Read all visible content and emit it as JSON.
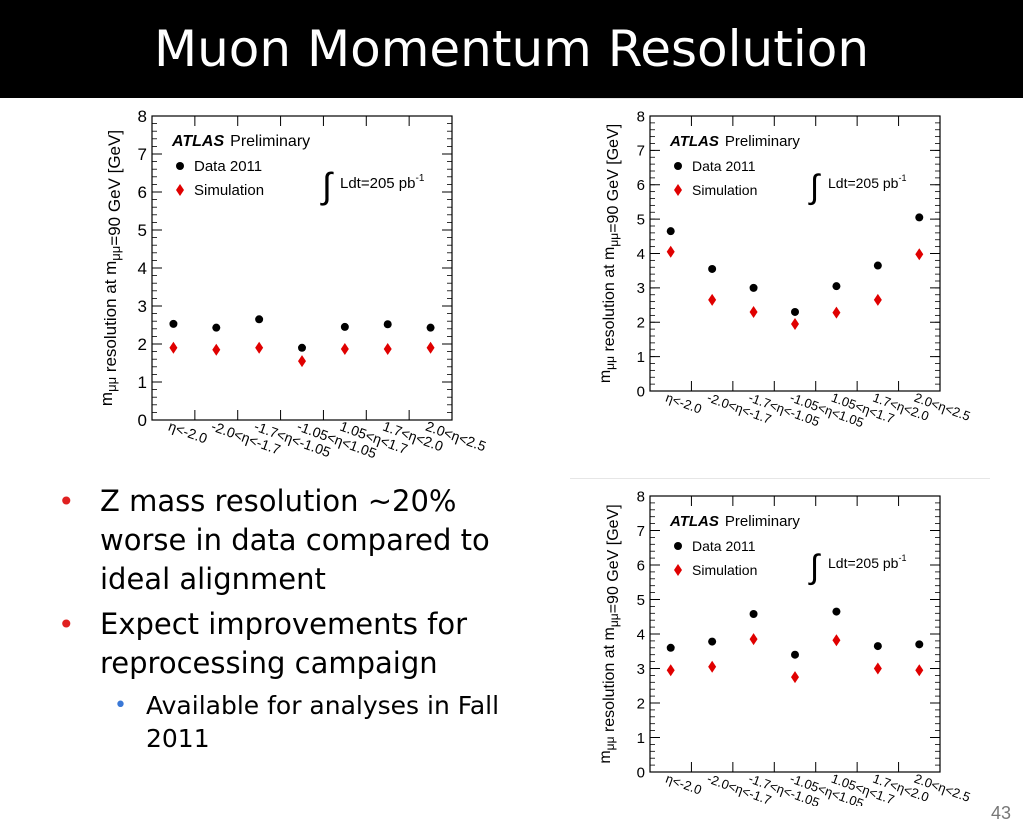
{
  "slide": {
    "title": "Muon Momentum Resolution",
    "page_number": "43",
    "bullets": [
      {
        "text": "Z mass resolution ~20% worse in data compared to ideal alignment"
      },
      {
        "text": "Expect improvements for reprocessing campaign",
        "sub": [
          {
            "text": "Available for analyses in Fall 2011"
          }
        ]
      }
    ]
  },
  "colors": {
    "data": "#000000",
    "simulation": "#e00000",
    "bullet": "#e02020",
    "sub_bullet": "#3a78d6"
  },
  "chart_data": [
    {
      "type": "scatter",
      "ylabel_main": "m",
      "ylabel_sub": "μμ",
      "ylabel_mid": " resolution at m",
      "ylabel_tail": "=90 GeV [GeV]",
      "ylim": [
        0,
        8
      ],
      "yticks": [
        "0",
        "1",
        "2",
        "3",
        "4",
        "5",
        "6",
        "7",
        "8"
      ],
      "categories": [
        "η<-2.0",
        "-2.0<η<-1.7",
        "-1.7<η<-1.05",
        "-1.05<η<1.05",
        "1.05<η<1.7",
        "1.7<η<2.0",
        "2.0<η<2.5"
      ],
      "label_atlas": "ATLAS",
      "label_prelim": "Preliminary",
      "integral_symbol": "∫",
      "lumi_text": "Ldt=205 pb",
      "lumi_exp": "-1",
      "legend": "top-left",
      "series": [
        {
          "name": "Data 2011",
          "marker": "circle",
          "values": [
            2.53,
            2.43,
            2.65,
            1.9,
            2.45,
            2.52,
            2.43
          ]
        },
        {
          "name": "Simulation",
          "marker": "diamond",
          "values": [
            1.9,
            1.85,
            1.9,
            1.55,
            1.87,
            1.87,
            1.9
          ]
        }
      ]
    },
    {
      "type": "scatter",
      "ylabel_main": "m",
      "ylabel_sub": "μμ",
      "ylabel_mid": " resolution at m",
      "ylabel_tail": "=90 GeV [GeV]",
      "ylim": [
        0,
        8
      ],
      "yticks": [
        "0",
        "1",
        "2",
        "3",
        "4",
        "5",
        "6",
        "7",
        "8"
      ],
      "categories": [
        "η<-2.0",
        "-2.0<η<-1.7",
        "-1.7<η<-1.05",
        "-1.05<η<1.05",
        "1.05<η<1.7",
        "1.7<η<2.0",
        "2.0<η<2.5"
      ],
      "label_atlas": "ATLAS",
      "label_prelim": "Preliminary",
      "integral_symbol": "∫",
      "lumi_text": "Ldt=205 pb",
      "lumi_exp": "-1",
      "legend": "top-left",
      "series": [
        {
          "name": "Data 2011",
          "marker": "circle",
          "values": [
            4.65,
            3.55,
            3.0,
            2.3,
            3.05,
            3.65,
            5.05
          ]
        },
        {
          "name": "Simulation",
          "marker": "diamond",
          "values": [
            4.05,
            2.65,
            2.3,
            1.95,
            2.28,
            2.65,
            3.98
          ]
        }
      ]
    },
    {
      "type": "scatter",
      "ylabel_main": "m",
      "ylabel_sub": "μμ",
      "ylabel_mid": " resolution at m",
      "ylabel_tail": "=90 GeV [GeV]",
      "ylim": [
        0,
        8
      ],
      "yticks": [
        "0",
        "1",
        "2",
        "3",
        "4",
        "5",
        "6",
        "7",
        "8"
      ],
      "categories": [
        "η<-2.0",
        "-2.0<η<-1.7",
        "-1.7<η<-1.05",
        "-1.05<η<1.05",
        "1.05<η<1.7",
        "1.7<η<2.0",
        "2.0<η<2.5"
      ],
      "label_atlas": "ATLAS",
      "label_prelim": "Preliminary",
      "integral_symbol": "∫",
      "lumi_text": "Ldt=205 pb",
      "lumi_exp": "-1",
      "legend": "top-left",
      "series": [
        {
          "name": "Data 2011",
          "marker": "circle",
          "values": [
            3.6,
            3.78,
            4.58,
            3.4,
            4.65,
            3.65,
            3.7
          ]
        },
        {
          "name": "Simulation",
          "marker": "diamond",
          "values": [
            2.95,
            3.05,
            3.85,
            2.75,
            3.82,
            3.0,
            2.95
          ]
        }
      ]
    }
  ]
}
